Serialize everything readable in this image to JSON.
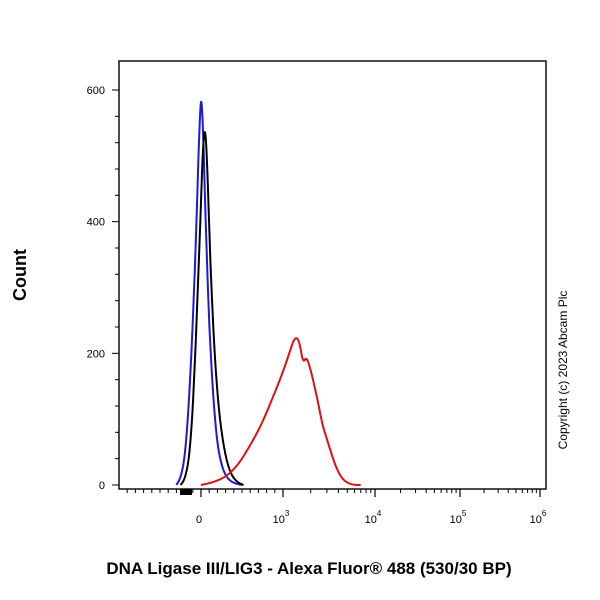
{
  "chart_data": {
    "type": "line",
    "title": "",
    "xlabel": "DNA Ligase III/LIG3 - Alexa Fluor® 488 (530/30 BP)",
    "ylabel": "Count",
    "x_scale": "biexponential",
    "xlim": [
      -1000,
      1000000
    ],
    "ylim": [
      0,
      650
    ],
    "grid": false,
    "legend": "none",
    "annotation": "Copyright (c) 2023 Abcam Plc",
    "y_ticks": [
      {
        "value": 0,
        "label": "0"
      },
      {
        "value": 200,
        "label": "200"
      },
      {
        "value": 400,
        "label": "400"
      },
      {
        "value": 600,
        "label": "600"
      }
    ],
    "x_ticks": [
      {
        "value": 0,
        "base": "0",
        "exp": ""
      },
      {
        "value": 1000,
        "base": "10",
        "exp": "3"
      },
      {
        "value": 10000,
        "base": "10",
        "exp": "4"
      },
      {
        "value": 100000,
        "base": "10",
        "exp": "5"
      },
      {
        "value": 1000000,
        "base": "10",
        "exp": "6"
      }
    ],
    "series": [
      {
        "color": "#1a1adc",
        "x": [
          -300,
          -250,
          -200,
          -160,
          -120,
          -90,
          -60,
          -40,
          -20,
          0,
          20,
          40,
          70,
          100,
          150,
          200,
          260,
          330,
          420,
          500
        ],
        "y": [
          0,
          10,
          40,
          100,
          190,
          280,
          380,
          460,
          540,
          592,
          560,
          470,
          350,
          240,
          130,
          60,
          25,
          8,
          2,
          0
        ]
      },
      {
        "color": "#000000",
        "x": [
          -250,
          -200,
          -150,
          -110,
          -80,
          -50,
          -20,
          0,
          20,
          40,
          60,
          80,
          100,
          130,
          170,
          220,
          280,
          350,
          430,
          520
        ],
        "y": [
          0,
          8,
          35,
          95,
          170,
          260,
          360,
          430,
          500,
          540,
          530,
          470,
          390,
          290,
          190,
          110,
          55,
          20,
          5,
          0
        ]
      },
      {
        "color": "#e01010",
        "x": [
          0,
          150,
          300,
          450,
          600,
          750,
          900,
          1050,
          1200,
          1350,
          1500,
          1650,
          1800,
          2000,
          2200,
          2450,
          2700,
          3000,
          3400,
          3900,
          4500,
          5200,
          6000,
          7000
        ],
        "y": [
          0,
          4,
          12,
          30,
          60,
          95,
          140,
          180,
          205,
          225,
          220,
          185,
          195,
          175,
          150,
          120,
          90,
          70,
          45,
          22,
          8,
          2,
          0,
          0
        ]
      }
    ]
  }
}
